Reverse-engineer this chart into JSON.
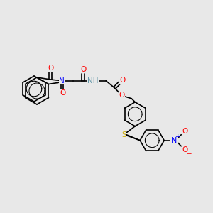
{
  "background_color": "#e8e8e8",
  "figsize": [
    3.0,
    3.0
  ],
  "dpi": 100,
  "atom_colors": {
    "C": "#000000",
    "N": "#0000ff",
    "O": "#ff0000",
    "S": "#ccaa00",
    "H": "#6699aa"
  },
  "bond_color": "#000000",
  "bond_width": 1.2,
  "font_size": 7.5
}
